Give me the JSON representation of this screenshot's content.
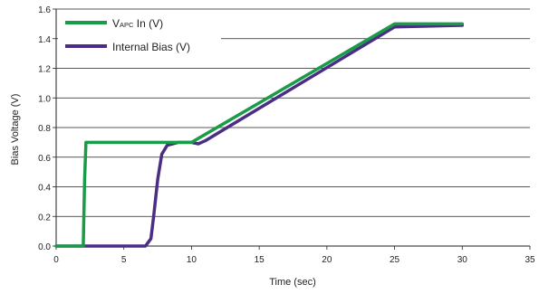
{
  "chart_data": {
    "type": "line",
    "title": "",
    "xlabel": "Time (sec)",
    "ylabel": "Bias Voltage (V)",
    "xlim": [
      0,
      35
    ],
    "ylim": [
      0,
      1.6
    ],
    "xticks": [
      0,
      5,
      10,
      15,
      20,
      25,
      30,
      35
    ],
    "xtick_labels": [
      "0",
      "5",
      "10",
      "15",
      "20",
      "25",
      "30",
      "35"
    ],
    "yticks": [
      0,
      0.2,
      0.4,
      0.6,
      0.8,
      1.0,
      1.2,
      1.4,
      1.6
    ],
    "ytick_labels": [
      "0.0",
      "0.2",
      "0.4",
      "0.6",
      "0.8",
      "1.0",
      "1.2",
      "1.4",
      "1.6"
    ],
    "grid": "horizontal",
    "legend_position": "top-left",
    "series": [
      {
        "name": "VAPC In (V)",
        "legend_main": "V",
        "legend_sub": "APC",
        "legend_rest": " In (V)",
        "color": "#1a9b48",
        "x": [
          0,
          2.0,
          2.1,
          2.2,
          10.0,
          25.0,
          30.0
        ],
        "y": [
          0,
          0,
          0.45,
          0.7,
          0.7,
          1.5,
          1.5
        ]
      },
      {
        "name": "Internal Bias (V)",
        "color": "#4b2d86",
        "x": [
          0,
          6.6,
          7.0,
          7.2,
          7.5,
          7.8,
          8.2,
          9.0,
          10.0,
          10.5,
          11.0,
          25.0,
          30.0
        ],
        "y": [
          0,
          0,
          0.05,
          0.2,
          0.45,
          0.62,
          0.68,
          0.7,
          0.7,
          0.69,
          0.71,
          1.48,
          1.49
        ]
      }
    ]
  }
}
